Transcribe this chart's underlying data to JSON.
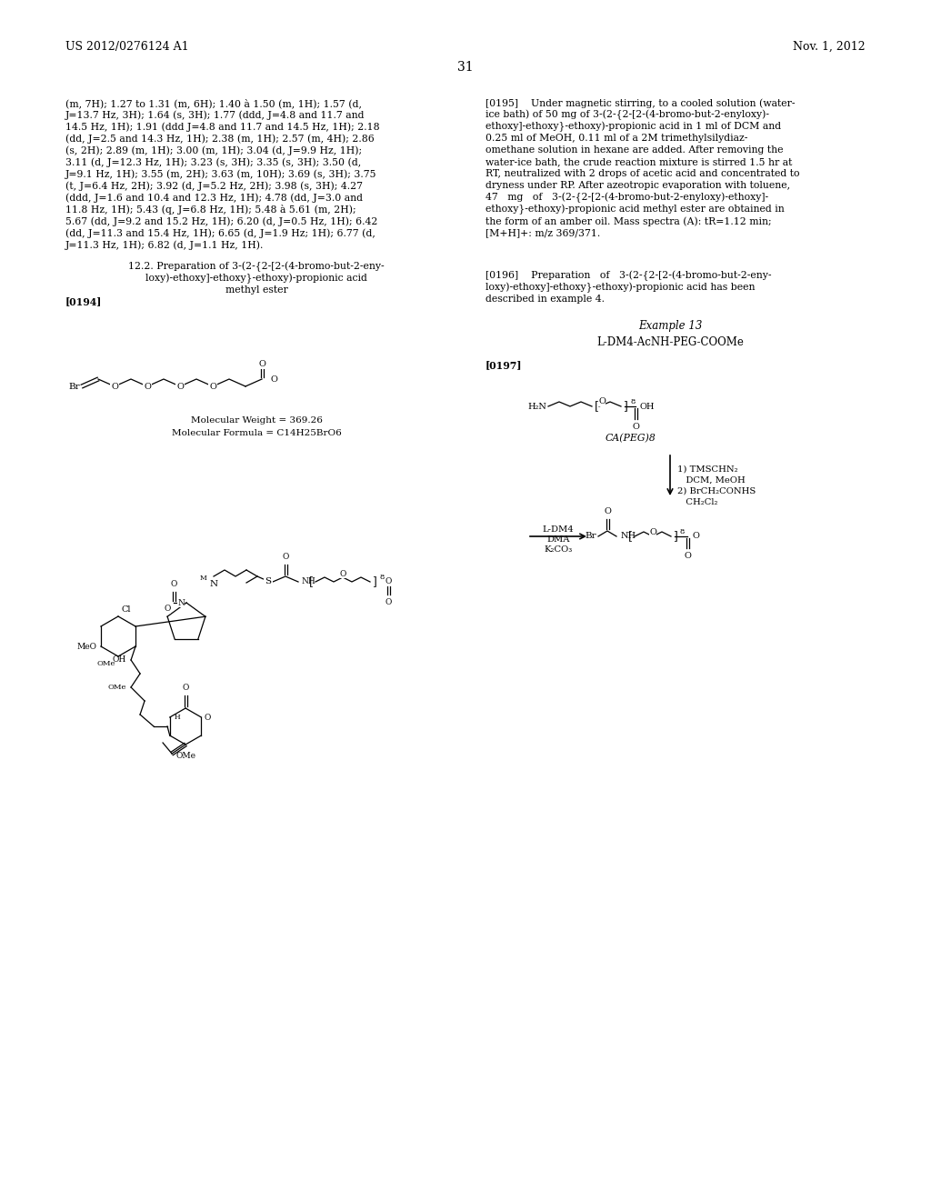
{
  "bg_color": "#ffffff",
  "header_left": "US 2012/0276124 A1",
  "header_right": "Nov. 1, 2012",
  "page_number": "31",
  "left_col_lines": [
    "(m, 7H); 1.27 to 1.31 (m, 6H); 1.40 à 1.50 (m, 1H); 1.57 (d,",
    "J=13.7 Hz, 3H); 1.64 (s, 3H); 1.77 (ddd, J=4.8 and 11.7 and",
    "14.5 Hz, 1H); 1.91 (ddd J=4.8 and 11.7 and 14.5 Hz, 1H); 2.18",
    "(dd, J=2.5 and 14.3 Hz, 1H); 2.38 (m, 1H); 2.57 (m, 4H); 2.86",
    "(s, 2H); 2.89 (m, 1H); 3.00 (m, 1H); 3.04 (d, J=9.9 Hz, 1H);",
    "3.11 (d, J=12.3 Hz, 1H); 3.23 (s, 3H); 3.35 (s, 3H); 3.50 (d,",
    "J=9.1 Hz, 1H); 3.55 (m, 2H); 3.63 (m, 10H); 3.69 (s, 3H); 3.75",
    "(t, J=6.4 Hz, 2H); 3.92 (d, J=5.2 Hz, 2H); 3.98 (s, 3H); 4.27",
    "(ddd, J=1.6 and 10.4 and 12.3 Hz, 1H); 4.78 (dd, J=3.0 and",
    "11.8 Hz, 1H); 5.43 (q, J=6.8 Hz, 1H); 5.48 à 5.61 (m, 2H);",
    "5.67 (dd, J=9.2 and 15.2 Hz, 1H); 6.20 (d, J=0.5 Hz, 1H); 6.42",
    "(dd, J=11.3 and 15.4 Hz, 1H); 6.65 (d, J=1.9 Hz; 1H); 6.77 (d,",
    "J=11.3 Hz, 1H); 6.82 (d, J=1.1 Hz, 1H)."
  ],
  "right_col_195_lines": [
    "[0195]    Under magnetic stirring, to a cooled solution (water-",
    "ice bath) of 50 mg of 3-(2-{2-[2-(4-bromo-but-2-enyloxy)-",
    "ethoxy]-ethoxy}-ethoxy)-propionic acid in 1 ml of DCM and",
    "0.25 ml of MeOH, 0.11 ml of a 2M trimethylsilydiaz-",
    "omethane solution in hexane are added. After removing the",
    "water-ice bath, the crude reaction mixture is stirred 1.5 hr at",
    "RT, neutralized with 2 drops of acetic acid and concentrated to",
    "dryness under RP. After azeotropic evaporation with toluene,",
    "47   mg   of   3-(2-{2-[2-(4-bromo-but-2-enyloxy)-ethoxy]-",
    "ethoxy}-ethoxy)-propionic acid methyl ester are obtained in",
    "the form of an amber oil. Mass spectra (A): tR=1.12 min;",
    "[M+H]+: m/z 369/371."
  ],
  "right_col_196_lines": [
    "[0196]    Preparation   of   3-(2-{2-[2-(4-bromo-but-2-eny-",
    "loxy)-ethoxy]-ethoxy}-ethoxy)-propionic acid has been",
    "described in example 4."
  ],
  "section_title_lines": [
    "12.2. Preparation of 3-(2-{2-[2-(4-bromo-but-2-eny-",
    "loxy)-ethoxy]-ethoxy}-ethoxy)-propionic acid",
    "methyl ester"
  ],
  "mol_weight": "Molecular Weight = 369.26",
  "mol_formula": "Molecular Formula = C14H25BrO6",
  "example13": "Example 13",
  "example13_sub": "L-DM4-AcNH-PEG-COOMe",
  "para194": "[0194]",
  "para197": "[0197]",
  "ca_peg8_label": "CA(PEG)8",
  "reagent_text_lines": [
    "1) TMSCHN₂",
    "   DCM, MeOH",
    "2) BrCH₂CONHS",
    "   CH₂Cl₂"
  ],
  "ldm4_lines": [
    "L-DM4",
    "DMA",
    "K₂CO₃"
  ]
}
